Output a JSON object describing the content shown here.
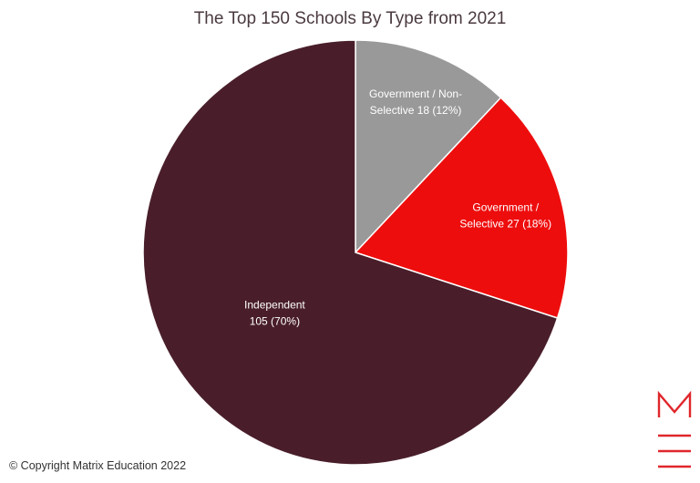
{
  "chart_data": {
    "type": "pie",
    "title": "The Top 150 Schools By Type from 2021",
    "slices": [
      {
        "name": "Government / Non-Selective",
        "value": 18,
        "percent": 12,
        "color": "#999999",
        "label_lines": [
          "Government / Non-",
          "Selective 18 (12%)"
        ]
      },
      {
        "name": "Government / Selective",
        "value": 27,
        "percent": 18,
        "color": "#ee0d0d",
        "label_lines": [
          "Government /",
          "Selective 27 (18%)"
        ]
      },
      {
        "name": "Independent",
        "value": 105,
        "percent": 70,
        "color": "#491e2a",
        "label_lines": [
          "Independent",
          "105 (70%)"
        ]
      }
    ],
    "start": "top, clockwise"
  },
  "footer": {
    "copyright": "© Copyright Matrix Education 2022"
  },
  "logo": {
    "color": "#e0262b"
  }
}
